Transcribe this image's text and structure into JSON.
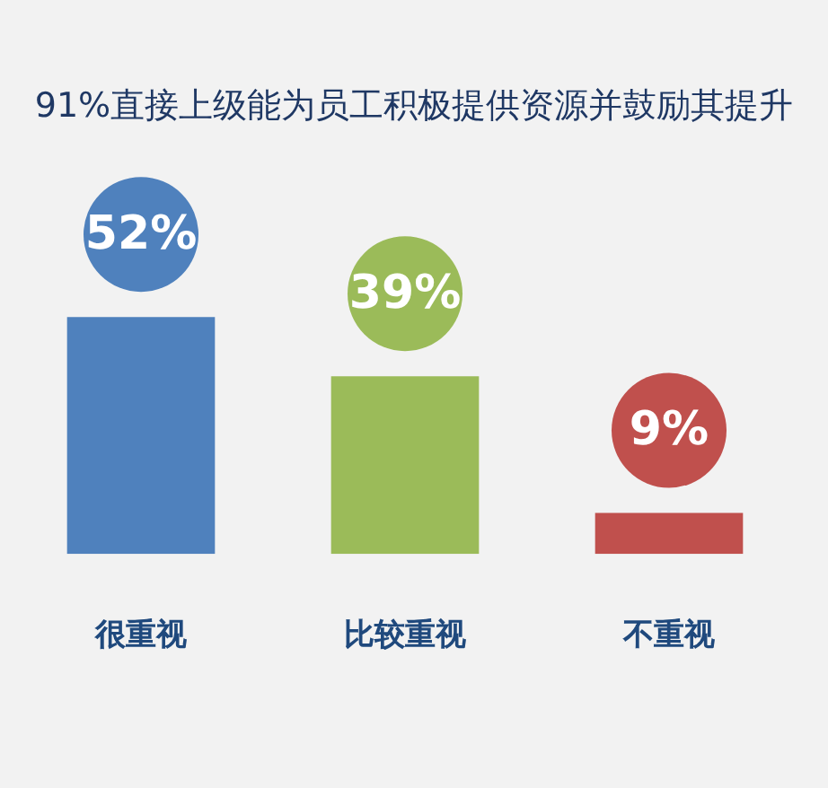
{
  "chart_data": {
    "type": "bar",
    "title": "91%直接上级能为员工积极提供资源并鼓励其提升",
    "categories": [
      "很重视",
      "比较重视",
      "不重视"
    ],
    "values": [
      52,
      39,
      9
    ],
    "colors": [
      "#4f81bd",
      "#9bbb59",
      "#c0504d"
    ],
    "value_labels": [
      "52%",
      "39%",
      "9%"
    ],
    "grid": false,
    "legend": false
  }
}
